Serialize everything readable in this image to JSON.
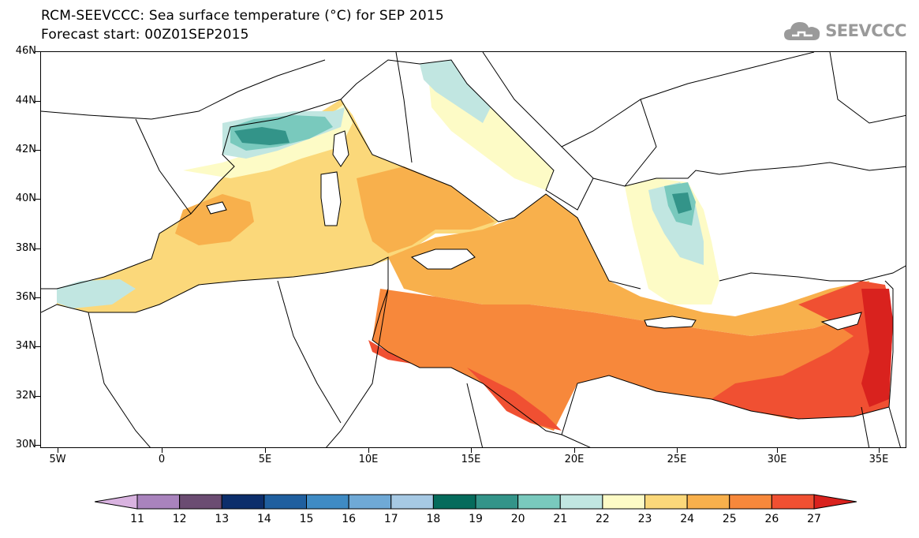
{
  "title_line1": "RCM-SEEVCCC: Sea surface temperature (°C) for SEP 2015",
  "title_line2": "Forecast start: 00Z01SEP2015",
  "logo_text": "SEEVCCC",
  "lat_labels": [
    "46N",
    "44N",
    "42N",
    "40N",
    "38N",
    "36N",
    "34N",
    "32N",
    "30N"
  ],
  "lon_labels": [
    "5W",
    "0",
    "5E",
    "10E",
    "15E",
    "20E",
    "25E",
    "30E",
    "35E"
  ],
  "colorbar": {
    "labels": [
      "11",
      "12",
      "13",
      "14",
      "15",
      "16",
      "17",
      "18",
      "19",
      "20",
      "21",
      "22",
      "23",
      "24",
      "25",
      "26",
      "27"
    ],
    "colors": [
      "#d9b3e0",
      "#a983bd",
      "#6b4c72",
      "#0c2e6b",
      "#1f5f9f",
      "#3f8bc4",
      "#6fa9d6",
      "#a6c9e4",
      "#056b5c",
      "#339489",
      "#79c9bd",
      "#c1e6e1",
      "#fdfbc6",
      "#fbd87a",
      "#f8b04c",
      "#f7883b",
      "#f05032",
      "#d9221e"
    ]
  },
  "colors": {
    "logo_grey": "#9a9a9a",
    "land": "#ffffff",
    "border_line": "#000000"
  }
}
